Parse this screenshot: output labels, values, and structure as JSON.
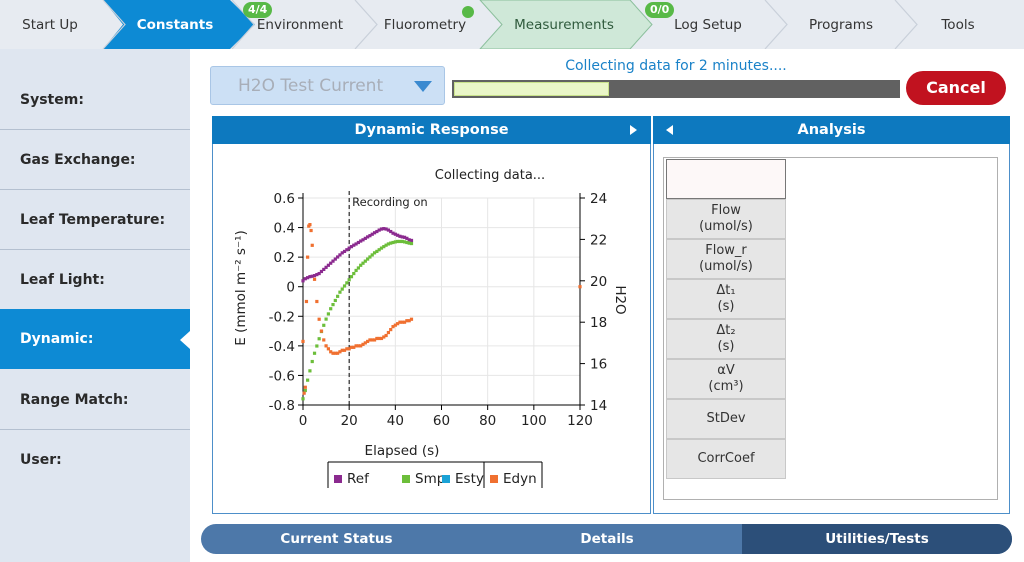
{
  "tabs": [
    {
      "label": "Start Up",
      "active": false
    },
    {
      "label": "Constants",
      "active": true
    },
    {
      "label": "Environment",
      "badge": "4/4"
    },
    {
      "label": "Fluorometry",
      "status_dot": true
    },
    {
      "label": "Measurements",
      "highlight": true
    },
    {
      "label": "Log Setup",
      "badge": "0/0"
    },
    {
      "label": "Programs"
    },
    {
      "label": "Tools"
    }
  ],
  "sidebar": {
    "items": [
      {
        "label": "System:"
      },
      {
        "label": "Gas Exchange:"
      },
      {
        "label": "Leaf Temperature:"
      },
      {
        "label": "Leaf Light:"
      },
      {
        "label": "Dynamic:",
        "active": true
      },
      {
        "label": "Range Match:"
      },
      {
        "label": "User:"
      }
    ]
  },
  "header": {
    "dropdown_value": "H2O Test Current",
    "progress_text": "Collecting data for 2 minutes....",
    "progress_fraction": 0.35,
    "cancel_label": "Cancel"
  },
  "dynamic_panel": {
    "title": "Dynamic Response"
  },
  "analysis_panel": {
    "title": "Analysis",
    "items": [
      {
        "line1": "Flow",
        "line2": "(umol/s)"
      },
      {
        "line1": "Flow_r",
        "line2": "(umol/s)"
      },
      {
        "line1": "Δt₁",
        "line2": "(s)"
      },
      {
        "line1": "Δt₂",
        "line2": "(s)"
      },
      {
        "line1": "αV",
        "line2": "(cm³)"
      },
      {
        "line1": "StDev",
        "line2": ""
      },
      {
        "line1": "CorrCoef",
        "line2": ""
      }
    ]
  },
  "bottom_tabs": [
    {
      "label": "Current Status"
    },
    {
      "label": "Details"
    },
    {
      "label": "Utilities/Tests",
      "active": true
    }
  ],
  "colors": {
    "tab_active": "#0d8ad4",
    "tab_highlight": "#cfe8d8",
    "sidebar_active": "#0d8ad4",
    "cancel": "#c1121f",
    "ref": "#8b2a8f",
    "smp": "#6cbe3a",
    "esty": "#1aa2d6",
    "edyn": "#f07030"
  },
  "chart_data": {
    "type": "scatter",
    "title": "Collecting data...",
    "annotation": "Recording on",
    "xlabel": "Elapsed (s)",
    "ylabel": "E (mmol m⁻² s⁻¹)",
    "y2label": "H2O",
    "xlim": [
      0,
      120
    ],
    "ylim": [
      -0.8,
      0.6
    ],
    "y2lim": [
      14,
      24
    ],
    "xticks": [
      "0",
      "20",
      "40",
      "60",
      "80",
      "100",
      "120"
    ],
    "yticks": [
      "0.6",
      "0.4",
      "0.2",
      "0",
      "-0.2",
      "-0.4",
      "-0.6",
      "-0.8"
    ],
    "y2ticks": [
      "24",
      "22",
      "20",
      "18",
      "16",
      "14"
    ],
    "recording_x": 20,
    "legend": [
      "Ref",
      "Smp",
      "Esty",
      "Edyn"
    ],
    "series": [
      {
        "name": "Ref",
        "axis": "y2",
        "points": [
          [
            0,
            20.0
          ],
          [
            1,
            20.1
          ],
          [
            2,
            20.15
          ],
          [
            3,
            20.2
          ],
          [
            4,
            20.22
          ],
          [
            5,
            20.25
          ],
          [
            6,
            20.3
          ],
          [
            7,
            20.35
          ],
          [
            8,
            20.45
          ],
          [
            9,
            20.55
          ],
          [
            10,
            20.65
          ],
          [
            11,
            20.75
          ],
          [
            12,
            20.85
          ],
          [
            13,
            20.95
          ],
          [
            14,
            21.05
          ],
          [
            15,
            21.15
          ],
          [
            16,
            21.25
          ],
          [
            17,
            21.35
          ],
          [
            18,
            21.42
          ],
          [
            19,
            21.5
          ],
          [
            20,
            21.58
          ],
          [
            21,
            21.65
          ],
          [
            22,
            21.72
          ],
          [
            23,
            21.78
          ],
          [
            24,
            21.85
          ],
          [
            25,
            21.92
          ],
          [
            26,
            21.98
          ],
          [
            27,
            22.05
          ],
          [
            28,
            22.12
          ],
          [
            29,
            22.18
          ],
          [
            30,
            22.25
          ],
          [
            31,
            22.32
          ],
          [
            32,
            22.38
          ],
          [
            33,
            22.45
          ],
          [
            34,
            22.5
          ],
          [
            35,
            22.52
          ],
          [
            36,
            22.5
          ],
          [
            37,
            22.45
          ],
          [
            38,
            22.38
          ],
          [
            39,
            22.3
          ],
          [
            40,
            22.25
          ],
          [
            41,
            22.2
          ],
          [
            42,
            22.15
          ],
          [
            43,
            22.12
          ],
          [
            44,
            22.1
          ],
          [
            45,
            22.05
          ],
          [
            46,
            21.98
          ],
          [
            47,
            21.95
          ]
        ]
      },
      {
        "name": "Smp",
        "axis": "y2",
        "points": [
          [
            0,
            14.3
          ],
          [
            1,
            14.7
          ],
          [
            2,
            15.2
          ],
          [
            3,
            15.65
          ],
          [
            4,
            16.1
          ],
          [
            5,
            16.5
          ],
          [
            6,
            16.85
          ],
          [
            7,
            17.2
          ],
          [
            8,
            17.55
          ],
          [
            9,
            17.85
          ],
          [
            10,
            18.15
          ],
          [
            11,
            18.4
          ],
          [
            12,
            18.65
          ],
          [
            13,
            18.85
          ],
          [
            14,
            19.05
          ],
          [
            15,
            19.25
          ],
          [
            16,
            19.45
          ],
          [
            17,
            19.6
          ],
          [
            18,
            19.75
          ],
          [
            19,
            19.9
          ],
          [
            20,
            20.05
          ],
          [
            21,
            20.2
          ],
          [
            22,
            20.35
          ],
          [
            23,
            20.5
          ],
          [
            24,
            20.62
          ],
          [
            25,
            20.75
          ],
          [
            26,
            20.85
          ],
          [
            27,
            20.95
          ],
          [
            28,
            21.05
          ],
          [
            29,
            21.15
          ],
          [
            30,
            21.25
          ],
          [
            31,
            21.35
          ],
          [
            32,
            21.42
          ],
          [
            33,
            21.5
          ],
          [
            34,
            21.58
          ],
          [
            35,
            21.65
          ],
          [
            36,
            21.72
          ],
          [
            37,
            21.78
          ],
          [
            38,
            21.82
          ],
          [
            39,
            21.85
          ],
          [
            40,
            21.88
          ],
          [
            41,
            21.9
          ],
          [
            42,
            21.9
          ],
          [
            43,
            21.9
          ],
          [
            44,
            21.88
          ],
          [
            45,
            21.85
          ],
          [
            46,
            21.82
          ],
          [
            47,
            21.8
          ]
        ]
      },
      {
        "name": "Esty",
        "axis": "y",
        "points": []
      },
      {
        "name": "Edyn",
        "axis": "y",
        "points": [
          [
            0,
            -0.37
          ],
          [
            0.5,
            -0.72
          ],
          [
            1,
            -0.68
          ],
          [
            1.5,
            -0.1
          ],
          [
            2,
            0.2
          ],
          [
            2.5,
            0.41
          ],
          [
            3,
            0.42
          ],
          [
            3.5,
            0.38
          ],
          [
            4,
            0.28
          ],
          [
            5,
            0.05
          ],
          [
            6,
            -0.1
          ],
          [
            7,
            -0.22
          ],
          [
            8,
            -0.3
          ],
          [
            9,
            -0.36
          ],
          [
            10,
            -0.4
          ],
          [
            11,
            -0.42
          ],
          [
            12,
            -0.44
          ],
          [
            13,
            -0.45
          ],
          [
            14,
            -0.45
          ],
          [
            15,
            -0.45
          ],
          [
            16,
            -0.44
          ],
          [
            17,
            -0.43
          ],
          [
            18,
            -0.43
          ],
          [
            19,
            -0.42
          ],
          [
            20,
            -0.42
          ],
          [
            21,
            -0.41
          ],
          [
            22,
            -0.41
          ],
          [
            23,
            -0.4
          ],
          [
            24,
            -0.4
          ],
          [
            25,
            -0.4
          ],
          [
            26,
            -0.39
          ],
          [
            27,
            -0.38
          ],
          [
            28,
            -0.37
          ],
          [
            29,
            -0.36
          ],
          [
            30,
            -0.36
          ],
          [
            31,
            -0.36
          ],
          [
            32,
            -0.35
          ],
          [
            33,
            -0.35
          ],
          [
            34,
            -0.35
          ],
          [
            35,
            -0.34
          ],
          [
            36,
            -0.33
          ],
          [
            37,
            -0.31
          ],
          [
            38,
            -0.29
          ],
          [
            39,
            -0.27
          ],
          [
            40,
            -0.26
          ],
          [
            41,
            -0.25
          ],
          [
            42,
            -0.24
          ],
          [
            43,
            -0.24
          ],
          [
            44,
            -0.24
          ],
          [
            45,
            -0.23
          ],
          [
            46,
            -0.23
          ],
          [
            47,
            -0.22
          ],
          [
            120,
            0.0
          ]
        ]
      }
    ]
  }
}
